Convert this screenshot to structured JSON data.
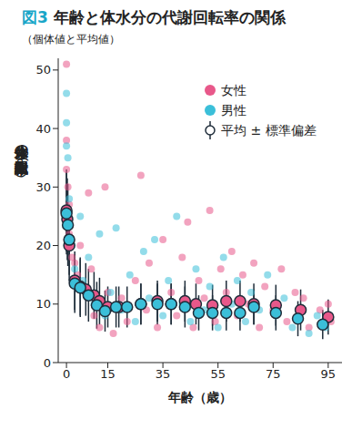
{
  "chart_data": {
    "type": "scatter",
    "figure_label": "図3",
    "title": "年齢と体水分の代謝回転率の関係",
    "subtitle": "（個体値と平均値）",
    "x_label": "年齢（歳）",
    "y_label": "体水分の代謝回転率（%）",
    "xlim": [
      -3,
      100
    ],
    "xticks": [
      0,
      15,
      35,
      55,
      75,
      95
    ],
    "ylim": [
      0,
      52
    ],
    "yticks": [
      0,
      10,
      20,
      30,
      40,
      50
    ],
    "grid": false,
    "legend": "upper right",
    "mean_label": "平均 ± 標準偏差",
    "series": [
      {
        "name": "女性",
        "color": "#e8588a",
        "points": [
          [
            0,
            51
          ],
          [
            0,
            38
          ],
          [
            0,
            33
          ],
          [
            0.5,
            30
          ],
          [
            1,
            27
          ],
          [
            1,
            22
          ],
          [
            2,
            18
          ],
          [
            3,
            17
          ],
          [
            4,
            15
          ],
          [
            5,
            20
          ],
          [
            6,
            13
          ],
          [
            8,
            29
          ],
          [
            9,
            16
          ],
          [
            10,
            8
          ],
          [
            12,
            6
          ],
          [
            14,
            30
          ],
          [
            15,
            12
          ],
          [
            17,
            5
          ],
          [
            20,
            11
          ],
          [
            22,
            7
          ],
          [
            25,
            14
          ],
          [
            27,
            32
          ],
          [
            29,
            9
          ],
          [
            30,
            17
          ],
          [
            33,
            6
          ],
          [
            35,
            21
          ],
          [
            38,
            12
          ],
          [
            40,
            8
          ],
          [
            42,
            18
          ],
          [
            44,
            24
          ],
          [
            46,
            6
          ],
          [
            48,
            14
          ],
          [
            50,
            11
          ],
          [
            52,
            26
          ],
          [
            54,
            7
          ],
          [
            56,
            16
          ],
          [
            58,
            12
          ],
          [
            60,
            19
          ],
          [
            62,
            8
          ],
          [
            64,
            15
          ],
          [
            66,
            10
          ],
          [
            68,
            17
          ],
          [
            70,
            6
          ],
          [
            72,
            13
          ],
          [
            75,
            9
          ],
          [
            78,
            16
          ],
          [
            80,
            7
          ],
          [
            83,
            12
          ],
          [
            86,
            11
          ],
          [
            88,
            6
          ],
          [
            92,
            9
          ],
          [
            95,
            10
          ],
          [
            96,
            7
          ]
        ],
        "means": {
          "x": [
            0,
            0.3,
            1,
            3,
            5,
            7,
            10,
            12,
            15,
            19,
            27,
            33,
            38,
            43,
            47,
            53,
            58,
            63,
            68,
            76,
            85,
            95
          ],
          "y": [
            26,
            24.5,
            20,
            14,
            13,
            12.5,
            11.5,
            10.5,
            9.5,
            9.5,
            10,
            10.5,
            10,
            10.5,
            10,
            9.8,
            10.5,
            10.5,
            10,
            9.8,
            9,
            7.8
          ],
          "sd": [
            7,
            7,
            6,
            5,
            5,
            4.5,
            4,
            4,
            3.5,
            3.5,
            3.5,
            3.5,
            3.5,
            3.5,
            3.5,
            3.5,
            3.5,
            3.5,
            3.5,
            3.5,
            3.5,
            3
          ]
        }
      },
      {
        "name": "男性",
        "color": "#3bbfd9",
        "points": [
          [
            0,
            46
          ],
          [
            0,
            41
          ],
          [
            0,
            37
          ],
          [
            0.5,
            35
          ],
          [
            1,
            28
          ],
          [
            1,
            24
          ],
          [
            2,
            20
          ],
          [
            3,
            16
          ],
          [
            5,
            25
          ],
          [
            6,
            14
          ],
          [
            8,
            18
          ],
          [
            10,
            10
          ],
          [
            12,
            22
          ],
          [
            14,
            8
          ],
          [
            16,
            12
          ],
          [
            18,
            23
          ],
          [
            20,
            9
          ],
          [
            23,
            15
          ],
          [
            25,
            7
          ],
          [
            28,
            19
          ],
          [
            30,
            11
          ],
          [
            32,
            21
          ],
          [
            35,
            8
          ],
          [
            37,
            14
          ],
          [
            40,
            25
          ],
          [
            42,
            10
          ],
          [
            45,
            7
          ],
          [
            47,
            16
          ],
          [
            50,
            9
          ],
          [
            52,
            13
          ],
          [
            55,
            6
          ],
          [
            57,
            18
          ],
          [
            60,
            10
          ],
          [
            62,
            14
          ],
          [
            65,
            7
          ],
          [
            67,
            12
          ],
          [
            70,
            9
          ],
          [
            73,
            15
          ],
          [
            76,
            8
          ],
          [
            79,
            11
          ],
          [
            82,
            6
          ],
          [
            85,
            9
          ],
          [
            88,
            5
          ],
          [
            91,
            8
          ],
          [
            94,
            6
          ]
        ],
        "means": {
          "x": [
            0,
            0.5,
            1,
            3,
            5,
            8,
            11,
            14,
            18,
            22,
            27,
            33,
            38,
            43,
            48,
            53,
            58,
            63,
            68,
            76,
            84,
            93
          ],
          "y": [
            25.5,
            23.5,
            21,
            13.5,
            12.8,
            11.5,
            9.8,
            8.8,
            9.5,
            9.5,
            10,
            10,
            10,
            9.5,
            8.5,
            8.5,
            8.5,
            8.5,
            9.5,
            8.5,
            7.5,
            6.5
          ],
          "sd": [
            7,
            7,
            6,
            5,
            5,
            4.5,
            4,
            3.5,
            3.5,
            3.5,
            3.5,
            3.5,
            3.5,
            3.5,
            3,
            3,
            3,
            3,
            3,
            3,
            3,
            2.5
          ]
        }
      }
    ]
  }
}
